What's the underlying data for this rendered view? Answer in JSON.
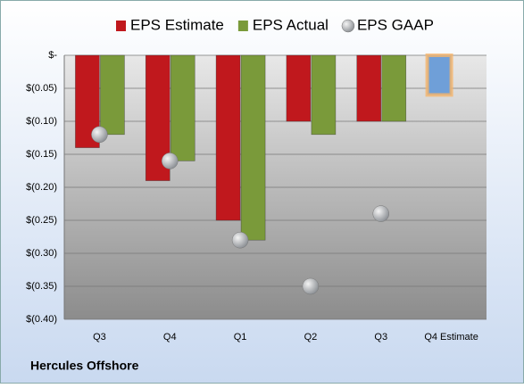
{
  "chart_data": {
    "type": "bar",
    "footer": "Hercules Offshore",
    "categories": [
      "Q3",
      "Q4",
      "Q1",
      "Q2",
      "Q3",
      "Q4 Estimate"
    ],
    "series": [
      {
        "name": "EPS Estimate",
        "color": "#c0181d",
        "colors": [
          "#c0181d",
          "#c0181d",
          "#c0181d",
          "#c0181d",
          "#c0181d",
          "#6f9fd8"
        ],
        "values": [
          -0.14,
          -0.19,
          -0.25,
          -0.1,
          -0.1,
          -0.06
        ]
      },
      {
        "name": "EPS Actual",
        "color": "#7a9a3a",
        "values": [
          -0.12,
          -0.16,
          -0.28,
          -0.12,
          -0.1,
          null
        ]
      },
      {
        "name": "EPS GAAP",
        "type": "scatter",
        "color": "#a8acb0",
        "values": [
          -0.12,
          -0.16,
          -0.28,
          -0.35,
          -0.24,
          null
        ]
      }
    ],
    "ylim": [
      -0.4,
      0
    ],
    "yticks": [
      {
        "value": 0,
        "label": "$-"
      },
      {
        "value": -0.05,
        "label": "$(0.05)"
      },
      {
        "value": -0.1,
        "label": "$(0.10)"
      },
      {
        "value": -0.15,
        "label": "$(0.15)"
      },
      {
        "value": -0.2,
        "label": "$(0.20)"
      },
      {
        "value": -0.25,
        "label": "$(0.25)"
      },
      {
        "value": -0.3,
        "label": "$(0.30)"
      },
      {
        "value": -0.35,
        "label": "$(0.35)"
      },
      {
        "value": -0.4,
        "label": "$(0.40)"
      }
    ],
    "grid": true,
    "legend": "top"
  }
}
